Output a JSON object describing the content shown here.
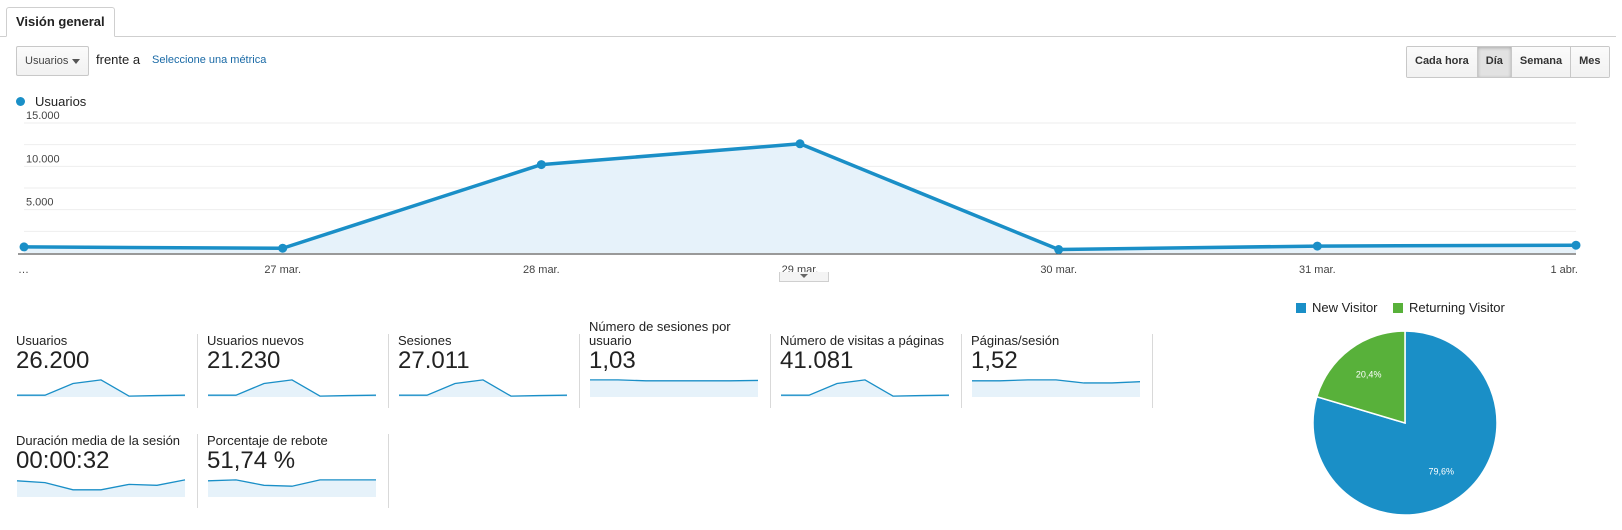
{
  "tabs": [
    {
      "label": "Visión general"
    }
  ],
  "controls": {
    "metric_select": "Usuarios",
    "vs_label": "frente a",
    "select_metric_link": "Seleccione una métrica",
    "granularity": [
      {
        "label": "Cada hora",
        "active": false
      },
      {
        "label": "Día",
        "active": true
      },
      {
        "label": "Semana",
        "active": false
      },
      {
        "label": "Mes",
        "active": false
      }
    ]
  },
  "legend": {
    "label": "Usuarios",
    "color": "#1a8fc7"
  },
  "chart_data": [
    {
      "type": "area",
      "series": [
        {
          "name": "Usuarios",
          "values": [
            700,
            550,
            10200,
            12600,
            400,
            800,
            900
          ]
        }
      ],
      "x_tick_labels": [
        "…",
        "27 mar.",
        "28 mar.",
        "29 mar.",
        "30 mar.",
        "31 mar.",
        "1 abr."
      ],
      "y_ticks": [
        5000,
        10000,
        15000
      ],
      "y_tick_labels": [
        "5.000",
        "10.000",
        "15.000"
      ],
      "ylim": [
        0,
        15000
      ],
      "grid": true,
      "color": "#1a8fc7"
    },
    {
      "type": "pie",
      "slices": [
        {
          "name": "New Visitor",
          "value": 79.6,
          "label": "79,6%",
          "color": "#1a8fc7"
        },
        {
          "name": "Returning Visitor",
          "value": 20.4,
          "label": "20,4%",
          "color": "#58b13a"
        }
      ],
      "legend_position": "top"
    }
  ],
  "metrics": [
    {
      "label": "Usuarios",
      "value": "26.200",
      "spark": [
        0.1,
        0.1,
        0.75,
        0.95,
        0.05,
        0.08,
        0.1
      ]
    },
    {
      "label": "Usuarios nuevos",
      "value": "21.230",
      "spark": [
        0.1,
        0.1,
        0.75,
        0.95,
        0.05,
        0.08,
        0.1
      ]
    },
    {
      "label": "Sesiones",
      "value": "27.011",
      "spark": [
        0.1,
        0.1,
        0.75,
        0.95,
        0.05,
        0.08,
        0.1
      ]
    },
    {
      "label": "Número de sesiones por usuario",
      "value": "1,03",
      "spark": [
        0.95,
        0.95,
        0.9,
        0.9,
        0.9,
        0.9,
        0.92
      ]
    },
    {
      "label": "Número de visitas a páginas",
      "value": "41.081",
      "spark": [
        0.1,
        0.1,
        0.75,
        0.95,
        0.05,
        0.08,
        0.1
      ]
    },
    {
      "label": "Páginas/sesión",
      "value": "1,52",
      "spark": [
        0.9,
        0.9,
        0.95,
        0.95,
        0.78,
        0.78,
        0.85
      ]
    },
    {
      "label": "Duración media de la sesión",
      "value": "00:00:32",
      "spark": [
        0.9,
        0.8,
        0.4,
        0.4,
        0.7,
        0.65,
        0.95
      ]
    },
    {
      "label": "Porcentaje de rebote",
      "value": "51,74 %",
      "spark": [
        0.9,
        0.95,
        0.65,
        0.6,
        0.95,
        0.95,
        0.95
      ]
    }
  ]
}
